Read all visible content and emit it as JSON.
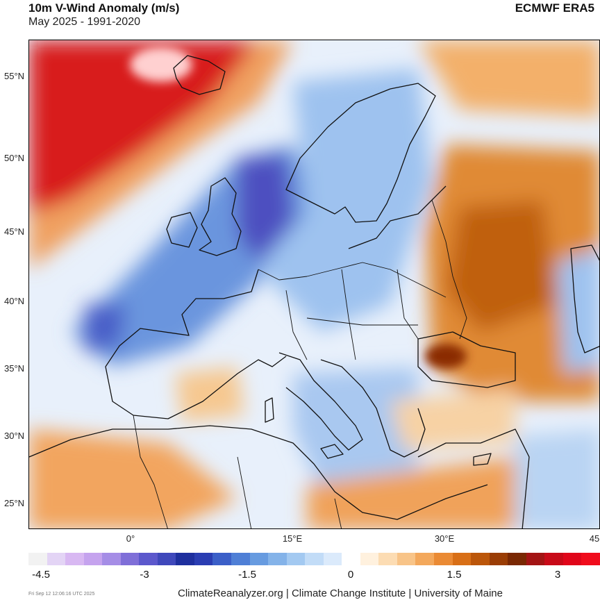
{
  "header": {
    "title": "10m V-Wind Anomaly (m/s)",
    "subtitle": "May 2025 - 1991-2020",
    "source": "ECMWF ERA5"
  },
  "map": {
    "lat_labels": [
      "55°N",
      "50°N",
      "45°N",
      "40°N",
      "35°N",
      "30°N",
      "25°N"
    ],
    "lon_labels": [
      "0°",
      "15°E",
      "30°E",
      "45"
    ],
    "colors": {
      "strong_positive": "#d40019",
      "positive": "#e07a1c",
      "weak_positive": "#f5c080",
      "neutral": "#ffffff",
      "weak_negative": "#bcd8f5",
      "negative": "#5b8fdc",
      "strong_negative": "#4a3fb6",
      "coastline": "#111111"
    }
  },
  "colorbar": {
    "labels": [
      "-4.5",
      "-3",
      "-1.5",
      "0",
      "1.5",
      "3"
    ],
    "colors": [
      "#f2f2f2",
      "#e3d4f5",
      "#d8b8f2",
      "#c5a3ee",
      "#a58de6",
      "#7f6fd8",
      "#5c58cc",
      "#3f48bb",
      "#1e2f9e",
      "#2a3db2",
      "#3b5fc8",
      "#4f7fd6",
      "#679be0",
      "#84b3e9",
      "#a3c9f1",
      "#c2dcf7",
      "#dbeafb",
      "#ffffff",
      "#fff1de",
      "#fcdcb3",
      "#f8c488",
      "#f3a85c",
      "#ea8a34",
      "#d86f17",
      "#bb560a",
      "#9a3d05",
      "#7a2803",
      "#a31414",
      "#c80a18",
      "#e0061a",
      "#f00c1c"
    ]
  },
  "footer": {
    "credits": "ClimateReanalyzer.org | Climate Change Institute | University of Maine",
    "timestamp": "Fri Sep 12 12:06:16 UTC 2025"
  }
}
